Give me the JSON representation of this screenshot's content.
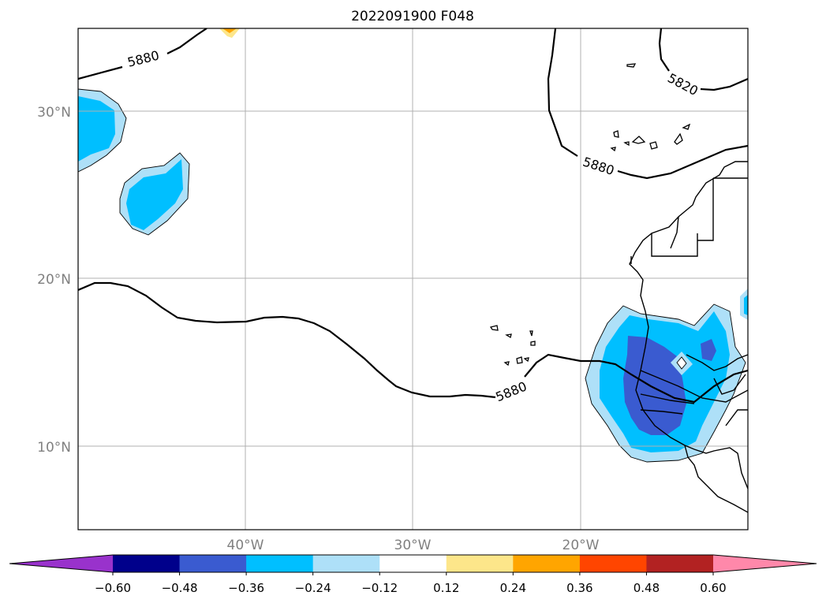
{
  "title": "2022091900 F048",
  "lat_labels": [
    "30°N",
    "20°N",
    "10°N"
  ],
  "lon_labels": [
    "40°W",
    "30°W",
    "20°W"
  ],
  "contour_labels": [
    "5880",
    "5880",
    "5880",
    "5820"
  ],
  "colorbar": {
    "tick_labels": [
      "−0.60",
      "−0.48",
      "−0.36",
      "−0.24",
      "−0.12",
      "0.12",
      "0.24",
      "0.36",
      "0.48",
      "0.60"
    ],
    "colors": [
      "#9932cc",
      "#00008b",
      "#3a5bd0",
      "#00bfff",
      "#aee0f8",
      "#ffffff",
      "#fde68a",
      "#ffa500",
      "#ff4500",
      "#b22222",
      "#ff88aa"
    ]
  },
  "colors": {
    "grid": "#b0b0b0",
    "tick_label": "#808080",
    "contour": "#000000"
  }
}
